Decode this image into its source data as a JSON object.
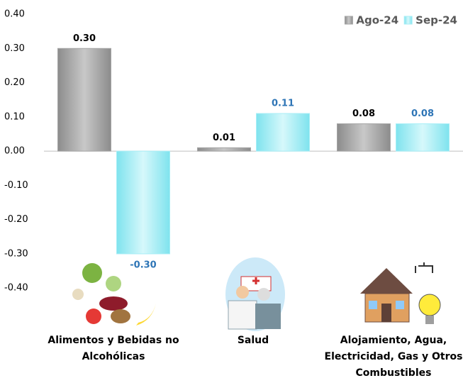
{
  "chart_data": {
    "type": "bar",
    "categories": [
      "Alimentos y Bebidas no Alcohólicas",
      "Salud",
      "Alojamiento, Agua, Electricidad, Gas y Otros Combustibles"
    ],
    "series": [
      {
        "name": "Ago-24",
        "color": "#a6a6a6",
        "values": [
          0.3,
          0.01,
          0.08
        ],
        "value_labels": [
          "0.30",
          "0.01",
          "0.08"
        ]
      },
      {
        "name": "Sep-24",
        "color": "#a8eef6",
        "values": [
          -0.3,
          0.11,
          0.08
        ],
        "value_labels": [
          "-0.30",
          "0.11",
          "0.08"
        ]
      }
    ],
    "ylim": [
      -0.5,
      0.4
    ],
    "yticks": [
      {
        "value": 0.4,
        "label": "0.40"
      },
      {
        "value": 0.3,
        "label": "0.30"
      },
      {
        "value": 0.2,
        "label": "0.20"
      },
      {
        "value": 0.1,
        "label": "0.10"
      },
      {
        "value": 0,
        "label": "0.00"
      },
      {
        "value": -0.1,
        "label": "-0.10"
      },
      {
        "value": -0.2,
        "label": "-0.20"
      },
      {
        "value": -0.3,
        "label": "-0.30"
      },
      {
        "value": -0.4,
        "label": "-0.40"
      }
    ],
    "legend": "top-right"
  }
}
